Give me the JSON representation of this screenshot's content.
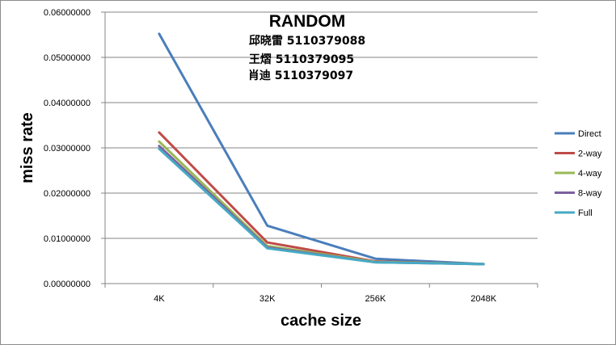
{
  "chart_data": {
    "type": "line",
    "title": "RANDOM",
    "subtitle_lines": [
      "邱晓雷 5110379088",
      "王熠 5110379095",
      "肖迪 5110379097"
    ],
    "xlabel": "cache size",
    "ylabel": "miss rate",
    "categories": [
      "4K",
      "32K",
      "256K",
      "2048K"
    ],
    "ylim": [
      0,
      0.06
    ],
    "yticks": [
      "0.00000000",
      "0.01000000",
      "0.02000000",
      "0.03000000",
      "0.04000000",
      "0.05000000",
      "0.06000000"
    ],
    "grid": true,
    "legend_position": "right",
    "series": [
      {
        "name": "Direct",
        "color": "#4a7ebb",
        "values": [
          0.0552,
          0.0128,
          0.0055,
          0.0043
        ]
      },
      {
        "name": "2-way",
        "color": "#be4b48",
        "values": [
          0.0334,
          0.0091,
          0.0049,
          0.0043
        ]
      },
      {
        "name": "4-way",
        "color": "#98b954",
        "values": [
          0.0314,
          0.0083,
          0.0048,
          0.0043
        ]
      },
      {
        "name": "8-way",
        "color": "#7d60a0",
        "values": [
          0.0304,
          0.008,
          0.0047,
          0.0043
        ]
      },
      {
        "name": "Full",
        "color": "#46aac5",
        "values": [
          0.0298,
          0.0078,
          0.0047,
          0.0043
        ]
      }
    ]
  }
}
